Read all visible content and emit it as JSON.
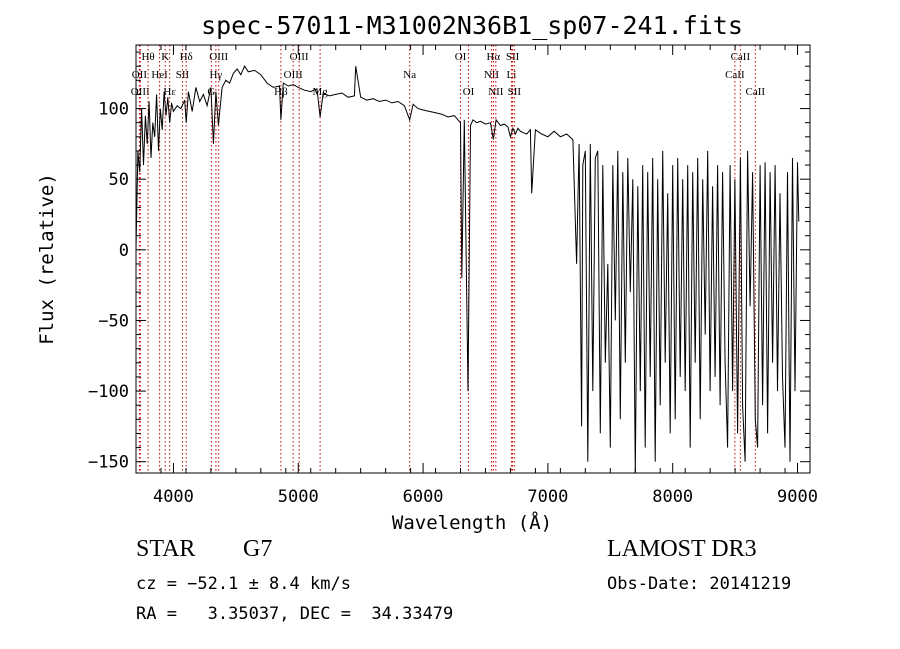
{
  "chart_data": {
    "type": "line",
    "title": "spec-57011-M31002N36B1_sp07-241.fits",
    "xlabel": "Wavelength (Å)",
    "ylabel": "Flux (relative)",
    "xlim": [
      3700,
      9100
    ],
    "ylim": [
      -158,
      145
    ],
    "xticks": [
      4000,
      5000,
      6000,
      7000,
      8000,
      9000
    ],
    "yticks": [
      -150,
      -100,
      -50,
      0,
      50,
      100
    ],
    "tick_labels_x": [
      "4000",
      "5000",
      "6000",
      "7000",
      "8000",
      "9000"
    ],
    "tick_labels_y": [
      "−150",
      "−100",
      "−50",
      "0",
      "50",
      "100"
    ],
    "line_color": "#000000",
    "marker_color": "#cc0000",
    "grid": false,
    "series": [
      {
        "x": [
          3700,
          3715,
          3730,
          3745,
          3760,
          3775,
          3790,
          3805,
          3820,
          3835,
          3850,
          3865,
          3880,
          3895,
          3910,
          3925,
          3940,
          3955,
          3970,
          3985,
          4000,
          4030,
          4060,
          4090,
          4102,
          4120,
          4150,
          4180,
          4210,
          4240,
          4270,
          4300,
          4320,
          4340,
          4360,
          4390,
          4420,
          4450,
          4480,
          4510,
          4540,
          4570,
          4600,
          4650,
          4700,
          4750,
          4800,
          4850,
          4861,
          4880,
          4920,
          4960,
          5000,
          5050,
          5100,
          5150,
          5175,
          5200,
          5250,
          5300,
          5350,
          5400,
          5450,
          5460,
          5500,
          5550,
          5600,
          5650,
          5700,
          5750,
          5800,
          5850,
          5893,
          5920,
          5960,
          6000,
          6050,
          6100,
          6150,
          6200,
          6250,
          6280,
          6300,
          6310,
          6330,
          6360,
          6380,
          6400,
          6430,
          6460,
          6500,
          6540,
          6563,
          6585,
          6620,
          6650,
          6680,
          6700,
          6720,
          6740,
          6760,
          6780,
          6800,
          6830,
          6860,
          6870,
          6900,
          6950,
          7000,
          7050,
          7100,
          7150,
          7200,
          7230,
          7250,
          7270,
          7280,
          7300,
          7320,
          7340,
          7360,
          7380,
          7400,
          7420,
          7440,
          7460,
          7480,
          7500,
          7520,
          7540,
          7560,
          7580,
          7600,
          7620,
          7640,
          7660,
          7680,
          7700,
          7720,
          7740,
          7760,
          7780,
          7800,
          7820,
          7840,
          7860,
          7880,
          7900,
          7920,
          7940,
          7960,
          7980,
          8000,
          8020,
          8040,
          8060,
          8080,
          8100,
          8120,
          8140,
          8160,
          8180,
          8200,
          8220,
          8240,
          8260,
          8280,
          8300,
          8320,
          8340,
          8360,
          8380,
          8400,
          8420,
          8440,
          8460,
          8480,
          8498,
          8520,
          8542,
          8560,
          8580,
          8600,
          8620,
          8640,
          8662,
          8680,
          8700,
          8720,
          8740,
          8760,
          8780,
          8800,
          8820,
          8840,
          8860,
          8880,
          8900,
          8920,
          8940,
          8960,
          8980,
          9000,
          9010
        ],
        "y": [
          0,
          70,
          55,
          100,
          60,
          95,
          75,
          105,
          65,
          90,
          80,
          110,
          70,
          100,
          85,
          112,
          95,
          108,
          90,
          104,
          98,
          102,
          100,
          106,
          90,
          112,
          98,
          115,
          105,
          110,
          102,
          115,
          75,
          112,
          88,
          115,
          120,
          118,
          125,
          128,
          124,
          130,
          126,
          127,
          124,
          118,
          115,
          116,
          92,
          118,
          116,
          117,
          115,
          113,
          112,
          114,
          94,
          111,
          109,
          110,
          111,
          108,
          109,
          130,
          108,
          106,
          107,
          105,
          106,
          104,
          105,
          102,
          92,
          103,
          100,
          99,
          98,
          97,
          96,
          94,
          95,
          92,
          90,
          -20,
          92,
          -100,
          88,
          92,
          90,
          91,
          89,
          90,
          78,
          92,
          88,
          89,
          87,
          80,
          86,
          82,
          86,
          84,
          83,
          82,
          85,
          40,
          85,
          82,
          80,
          84,
          80,
          82,
          78,
          -10,
          75,
          -125,
          60,
          70,
          -150,
          75,
          -100,
          65,
          70,
          -130,
          60,
          -80,
          -10,
          -140,
          60,
          -50,
          70,
          -120,
          55,
          -80,
          65,
          -30,
          50,
          -160,
          45,
          -100,
          60,
          -140,
          55,
          -90,
          65,
          -150,
          50,
          -110,
          70,
          -80,
          40,
          -130,
          60,
          -120,
          65,
          -90,
          50,
          -100,
          60,
          -140,
          55,
          -80,
          65,
          -120,
          50,
          -60,
          70,
          -100,
          45,
          -90,
          60,
          -110,
          55,
          -80,
          -140,
          60,
          -100,
          50,
          -130,
          65,
          -110,
          -150,
          70,
          -40,
          55,
          -120,
          -140,
          60,
          -110,
          62,
          -130,
          55,
          -80,
          60,
          -100,
          40,
          -90,
          -140,
          55,
          -150,
          65,
          -100,
          62,
          20
        ]
      }
    ],
    "line_markers": [
      {
        "wl": 3727,
        "label": "OII",
        "row": 1
      },
      {
        "wl": 3734,
        "label": "OIII",
        "row": 2
      },
      {
        "wl": 3797,
        "label": "Hθ",
        "row": 0
      },
      {
        "wl": 3889,
        "label": "HeI",
        "row": 1
      },
      {
        "wl": 3934,
        "label": "K",
        "row": 0
      },
      {
        "wl": 3970,
        "label": "Hε",
        "row": 2
      },
      {
        "wl": 4072,
        "label": "SII",
        "row": 1
      },
      {
        "wl": 4102,
        "label": "Hδ",
        "row": 0
      },
      {
        "wl": 4304,
        "label": "G",
        "row": 2
      },
      {
        "wl": 4340,
        "label": "Hγ",
        "row": 1
      },
      {
        "wl": 4363,
        "label": "OIII",
        "row": 0
      },
      {
        "wl": 4861,
        "label": "Hβ",
        "row": 2
      },
      {
        "wl": 4959,
        "label": "OIII",
        "row": 1
      },
      {
        "wl": 5007,
        "label": "OIII",
        "row": 0
      },
      {
        "wl": 5175,
        "label": "Mg",
        "row": 2
      },
      {
        "wl": 5893,
        "label": "Na",
        "row": 1
      },
      {
        "wl": 6300,
        "label": "OI",
        "row": 0
      },
      {
        "wl": 6364,
        "label": "OI",
        "row": 2
      },
      {
        "wl": 6548,
        "label": "NII",
        "row": 1
      },
      {
        "wl": 6563,
        "label": "Hα",
        "row": 0
      },
      {
        "wl": 6583,
        "label": "NII",
        "row": 2
      },
      {
        "wl": 6708,
        "label": "Li",
        "row": 1
      },
      {
        "wl": 6717,
        "label": "SII",
        "row": 0
      },
      {
        "wl": 6731,
        "label": "SII",
        "row": 2
      },
      {
        "wl": 8498,
        "label": "CaII",
        "row": 1
      },
      {
        "wl": 8542,
        "label": "CaII",
        "row": 0
      },
      {
        "wl": 8662,
        "label": "CaII",
        "row": 2
      }
    ]
  },
  "info": {
    "object_type": "STAR",
    "subclass": "G7",
    "survey": "LAMOST DR3",
    "cz": "cz = −52.1 ± 8.4 km/s",
    "obs_date": "Obs-Date: 20141219",
    "coords": "RA =   3.35037, DEC =  34.33479"
  }
}
